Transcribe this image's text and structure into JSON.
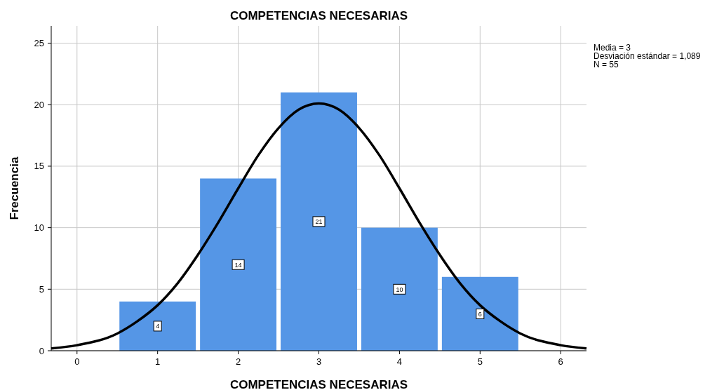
{
  "chart_data": {
    "type": "histogram",
    "title": "COMPETENCIAS NECESARIAS",
    "xlabel": "COMPETENCIAS NECESARIAS",
    "ylabel": "Frecuencia",
    "bins": [
      0.5,
      1.5,
      2.5,
      3.5,
      4.5,
      5.5
    ],
    "series": [
      {
        "color": "#5596e6",
        "values": [
          4,
          14,
          21,
          10,
          6
        ],
        "value_labels": [
          "4",
          "14",
          "21",
          "10",
          "6"
        ]
      },
      {
        "type": "line",
        "color": "#000000",
        "x": [
          -0.32,
          0,
          0.5,
          0.75,
          1,
          1.25,
          1.5,
          1.75,
          2,
          2.25,
          2.5,
          2.75,
          3,
          3.25,
          3.5,
          3.75,
          4,
          4.25,
          4.5,
          4.75,
          5,
          5.25,
          5.5,
          6,
          6.32
        ],
        "values": [
          0.19,
          0.45,
          1.4,
          2.4,
          3.7,
          5.5,
          7.8,
          10.4,
          13.2,
          15.9,
          18.1,
          19.6,
          20.1,
          19.6,
          18.1,
          15.9,
          13.2,
          10.4,
          7.8,
          5.5,
          3.7,
          2.4,
          1.4,
          0.45,
          0.19
        ]
      }
    ],
    "xlim": [
      -0.32,
      6.32
    ],
    "xticks": [
      0,
      1,
      2,
      3,
      4,
      5,
      6
    ],
    "ylim": [
      0,
      26.4
    ],
    "yticks": [
      0,
      5,
      10,
      15,
      20,
      25
    ],
    "grid": true,
    "annotations": [
      "Media = 3",
      "Desviación estándar = 1,089",
      "N = 55"
    ]
  }
}
